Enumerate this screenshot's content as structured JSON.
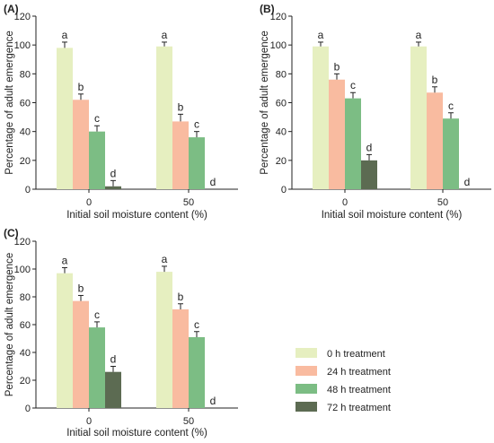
{
  "chart_data": [
    {
      "type": "bar",
      "panel_label": "(A)",
      "categories": [
        "0",
        "50"
      ],
      "xlabel": "Initial soil moisture content (%)",
      "ylabel": "Percentage of adult emergence",
      "ylim": [
        0,
        120
      ],
      "yticks": [
        0,
        20,
        40,
        60,
        80,
        100,
        120
      ],
      "series": [
        {
          "name": "0 h treatment",
          "values": [
            98,
            99
          ],
          "errors": [
            4,
            3
          ],
          "letters": [
            "a",
            "a"
          ]
        },
        {
          "name": "24 h treatment",
          "values": [
            62,
            47
          ],
          "errors": [
            4,
            5
          ],
          "letters": [
            "b",
            "b"
          ]
        },
        {
          "name": "48 h treatment",
          "values": [
            40,
            36
          ],
          "errors": [
            4,
            4
          ],
          "letters": [
            "c",
            "c"
          ]
        },
        {
          "name": "72 h treatment",
          "values": [
            2,
            0
          ],
          "errors": [
            4,
            0
          ],
          "letters": [
            "d",
            "d"
          ]
        }
      ]
    },
    {
      "type": "bar",
      "panel_label": "(B)",
      "categories": [
        "0",
        "50"
      ],
      "xlabel": "Initial soil moisture content (%)",
      "ylabel": "Percentage of adult emergence",
      "ylim": [
        0,
        120
      ],
      "yticks": [
        0,
        20,
        40,
        60,
        80,
        100,
        120
      ],
      "series": [
        {
          "name": "0 h treatment",
          "values": [
            99,
            99
          ],
          "errors": [
            3,
            3
          ],
          "letters": [
            "a",
            "a"
          ]
        },
        {
          "name": "24 h treatment",
          "values": [
            76,
            67
          ],
          "errors": [
            4,
            4
          ],
          "letters": [
            "b",
            "b"
          ]
        },
        {
          "name": "48 h treatment",
          "values": [
            63,
            49
          ],
          "errors": [
            4,
            4
          ],
          "letters": [
            "c",
            "c"
          ]
        },
        {
          "name": "72 h treatment",
          "values": [
            20,
            0
          ],
          "errors": [
            4,
            0
          ],
          "letters": [
            "d",
            "d"
          ]
        }
      ]
    },
    {
      "type": "bar",
      "panel_label": "(C)",
      "categories": [
        "0",
        "50"
      ],
      "xlabel": "Initial soil moisture content (%)",
      "ylabel": "Percentage of adult emergence",
      "ylim": [
        0,
        120
      ],
      "yticks": [
        0,
        20,
        40,
        60,
        80,
        100,
        120
      ],
      "series": [
        {
          "name": "0 h treatment",
          "values": [
            97,
            98
          ],
          "errors": [
            4,
            4
          ],
          "letters": [
            "a",
            "a"
          ]
        },
        {
          "name": "24 h treatment",
          "values": [
            77,
            71
          ],
          "errors": [
            4,
            4
          ],
          "letters": [
            "b",
            "b"
          ]
        },
        {
          "name": "48 h treatment",
          "values": [
            58,
            51
          ],
          "errors": [
            4,
            4
          ],
          "letters": [
            "c",
            "c"
          ]
        },
        {
          "name": "72 h treatment",
          "values": [
            26,
            0
          ],
          "errors": [
            4,
            0
          ],
          "letters": [
            "d",
            "d"
          ]
        }
      ]
    }
  ],
  "legend": {
    "items": [
      {
        "label": "0 h treatment",
        "color": "#e6efc0"
      },
      {
        "label": "24 h treatment",
        "color": "#f9bba0"
      },
      {
        "label": "48 h treatment",
        "color": "#7cbd84"
      },
      {
        "label": "72 h treatment",
        "color": "#5c6b52"
      }
    ]
  }
}
